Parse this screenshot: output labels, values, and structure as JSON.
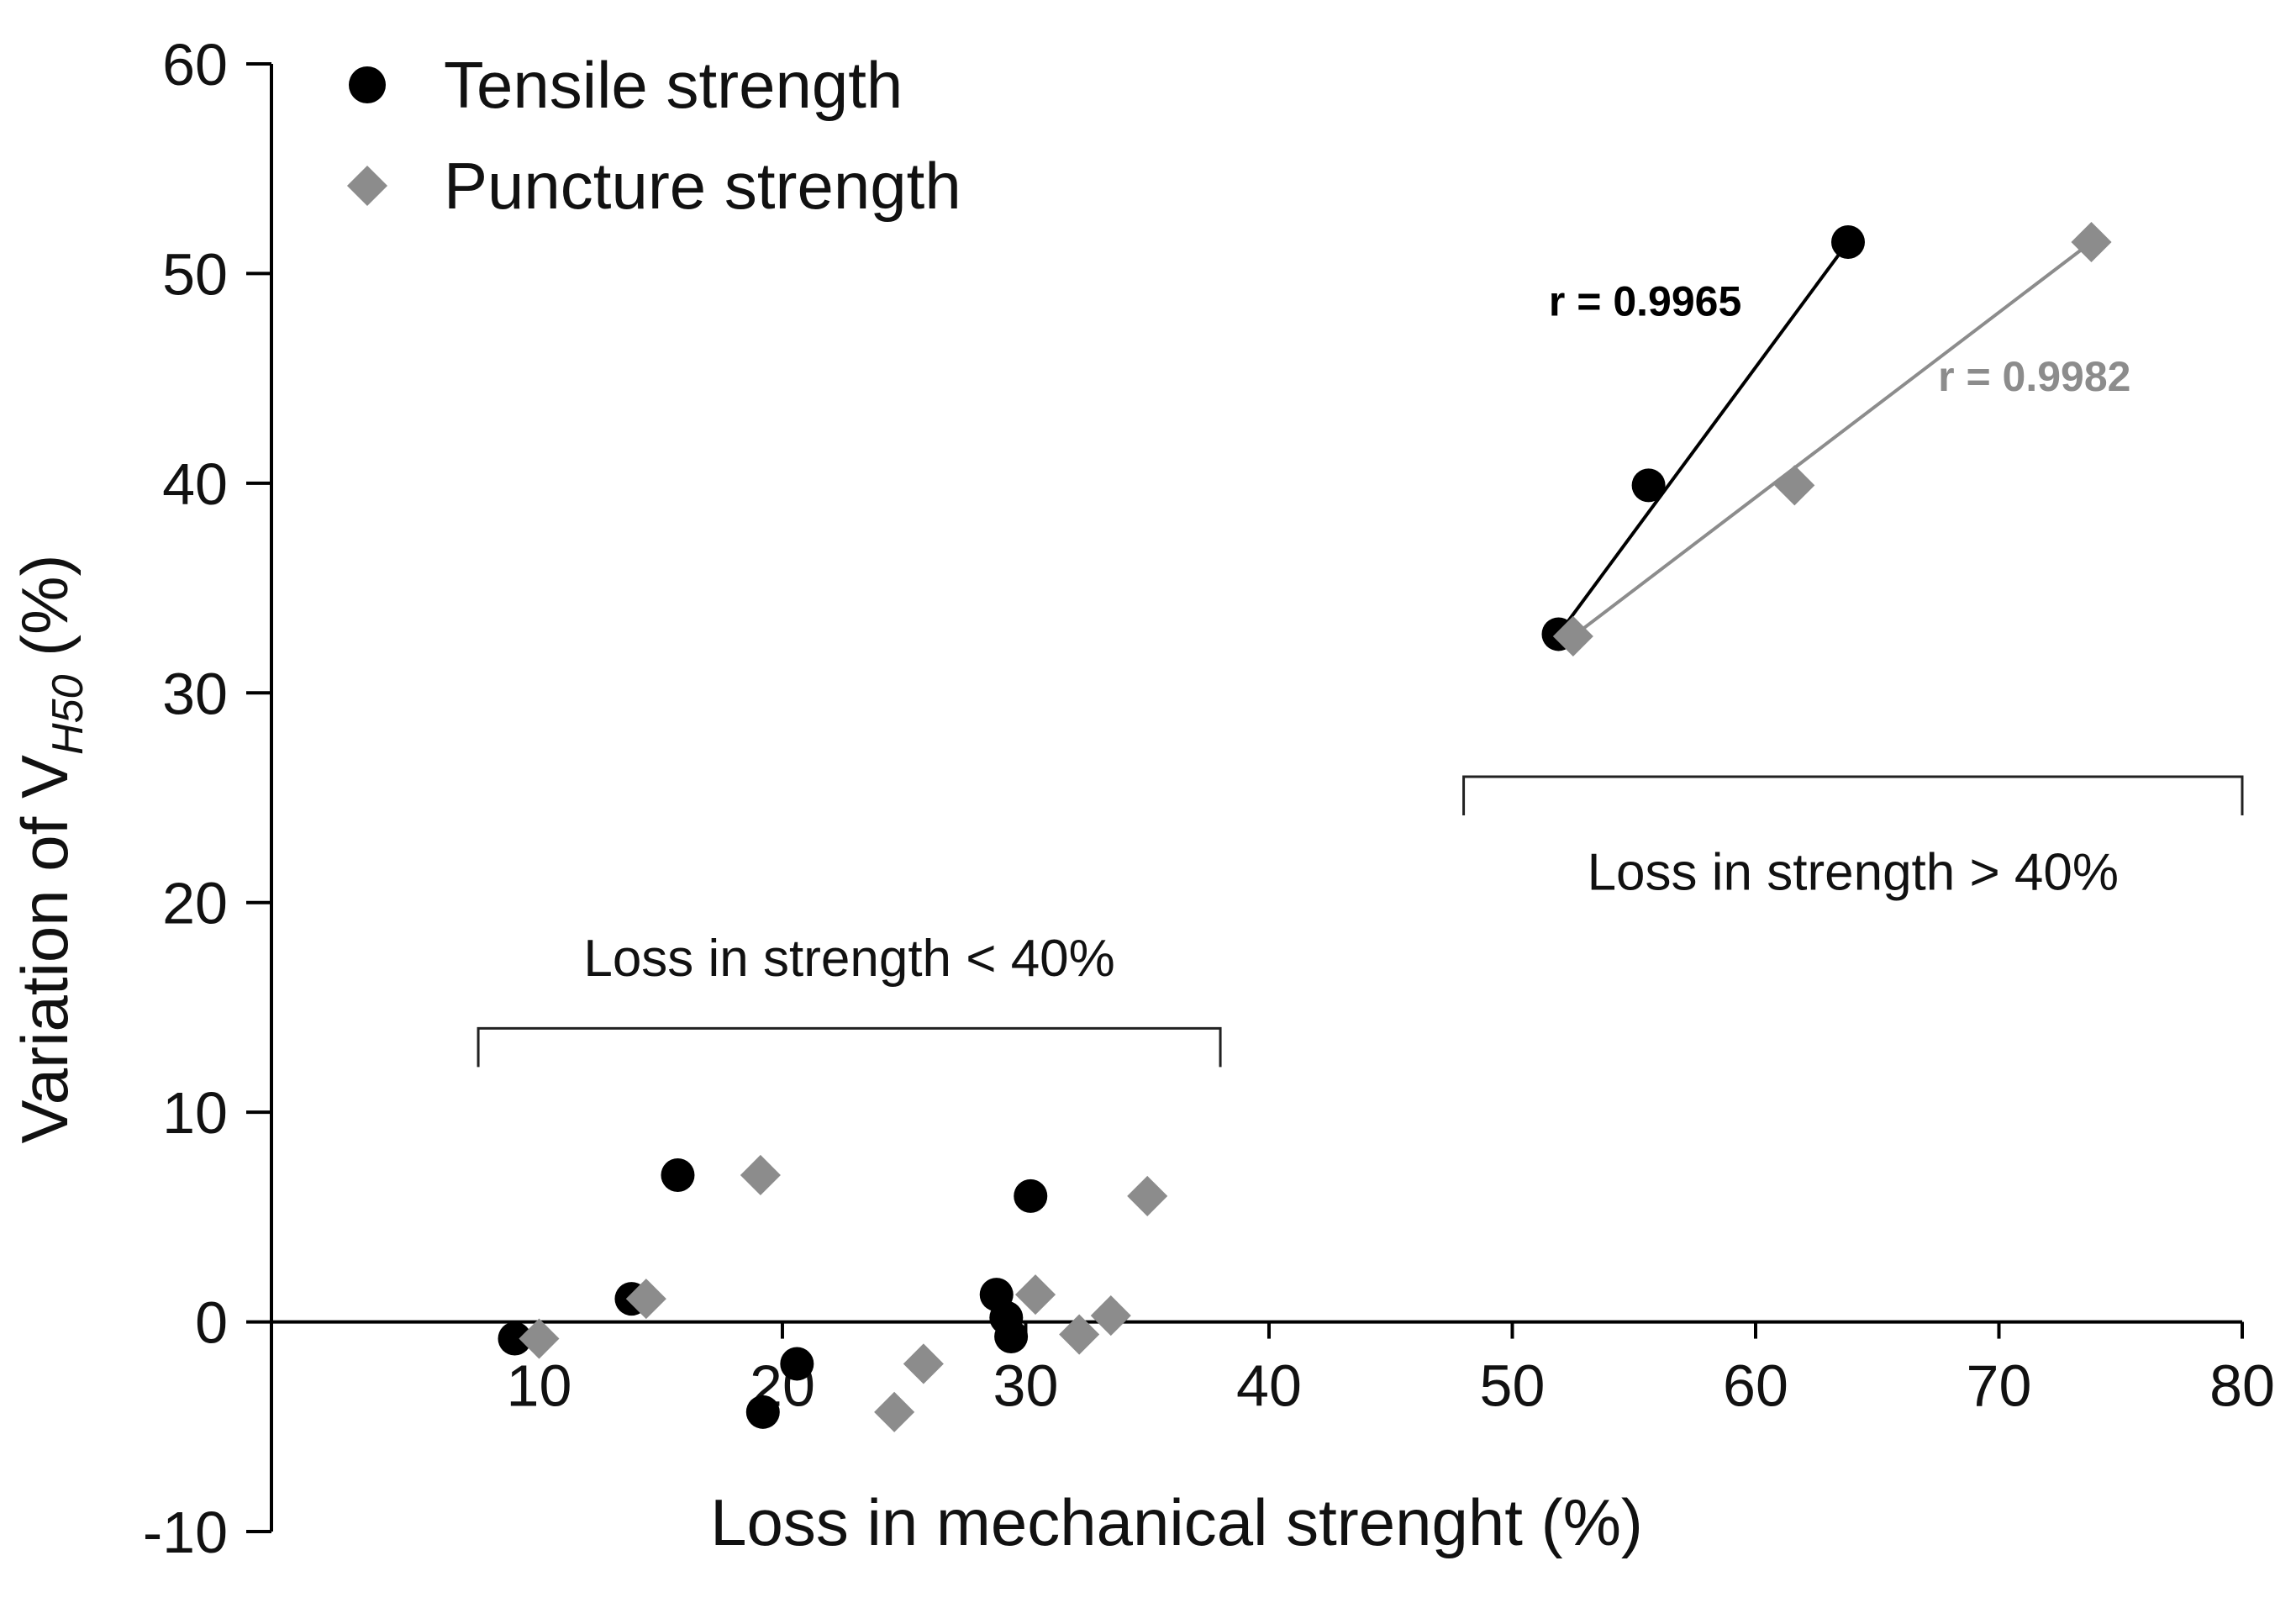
{
  "chart_data": {
    "type": "scatter",
    "title": "",
    "xlabel": "Loss in mechanical strenght (%)",
    "ylabel": {
      "prefix": "Variation of V",
      "subscript": "H50",
      "suffix": " (%)"
    },
    "xlim": [
      -1,
      80
    ],
    "ylim": [
      -10,
      60
    ],
    "xticks": [
      10,
      20,
      30,
      40,
      50,
      60,
      70,
      80
    ],
    "yticks": [
      -10,
      0,
      10,
      20,
      30,
      40,
      50,
      60
    ],
    "legend_position": "top-left",
    "series": [
      {
        "name": "Tensile strength",
        "marker": "circle",
        "color": "#000000",
        "points": [
          [
            9.0,
            -0.8
          ],
          [
            13.8,
            1.1
          ],
          [
            15.7,
            7.0
          ],
          [
            19.2,
            -4.3
          ],
          [
            20.6,
            -2.0
          ],
          [
            28.8,
            1.3
          ],
          [
            29.2,
            0.2
          ],
          [
            29.4,
            -0.7
          ],
          [
            30.2,
            6.0
          ],
          [
            51.9,
            32.8
          ],
          [
            55.6,
            39.9
          ],
          [
            63.8,
            51.5
          ]
        ]
      },
      {
        "name": "Puncture strength",
        "marker": "diamond",
        "color": "#8c8c8c",
        "points": [
          [
            10.0,
            -0.8
          ],
          [
            14.4,
            1.1
          ],
          [
            19.1,
            7.0
          ],
          [
            24.6,
            -4.3
          ],
          [
            25.8,
            -2.0
          ],
          [
            30.4,
            1.3
          ],
          [
            33.5,
            0.3
          ],
          [
            32.2,
            -0.6
          ],
          [
            35.0,
            6.0
          ],
          [
            52.5,
            32.7
          ],
          [
            61.6,
            39.9
          ],
          [
            73.8,
            51.5
          ]
        ]
      }
    ],
    "fit_lines": [
      {
        "series": "Tensile strength",
        "from": [
          51.9,
          32.8
        ],
        "to": [
          63.8,
          51.5
        ],
        "color": "#000000",
        "label": "r = 0.9965",
        "label_at": [
          51.5,
          48.0
        ]
      },
      {
        "series": "Puncture strength",
        "from": [
          52.5,
          32.7
        ],
        "to": [
          73.8,
          51.5
        ],
        "color": "#8c8c8c",
        "label": "r = 0.9982",
        "label_at": [
          67.5,
          44.4
        ]
      }
    ],
    "annotations": [
      {
        "text": "Loss in strength < 40%",
        "range_x": [
          7.5,
          38.0
        ],
        "bracket_y": 14.0,
        "text_y": 16.5
      },
      {
        "text": "Loss in strength > 40%",
        "range_x": [
          48.0,
          80.0
        ],
        "bracket_y": 26.0,
        "text_y": 20.6
      }
    ]
  }
}
